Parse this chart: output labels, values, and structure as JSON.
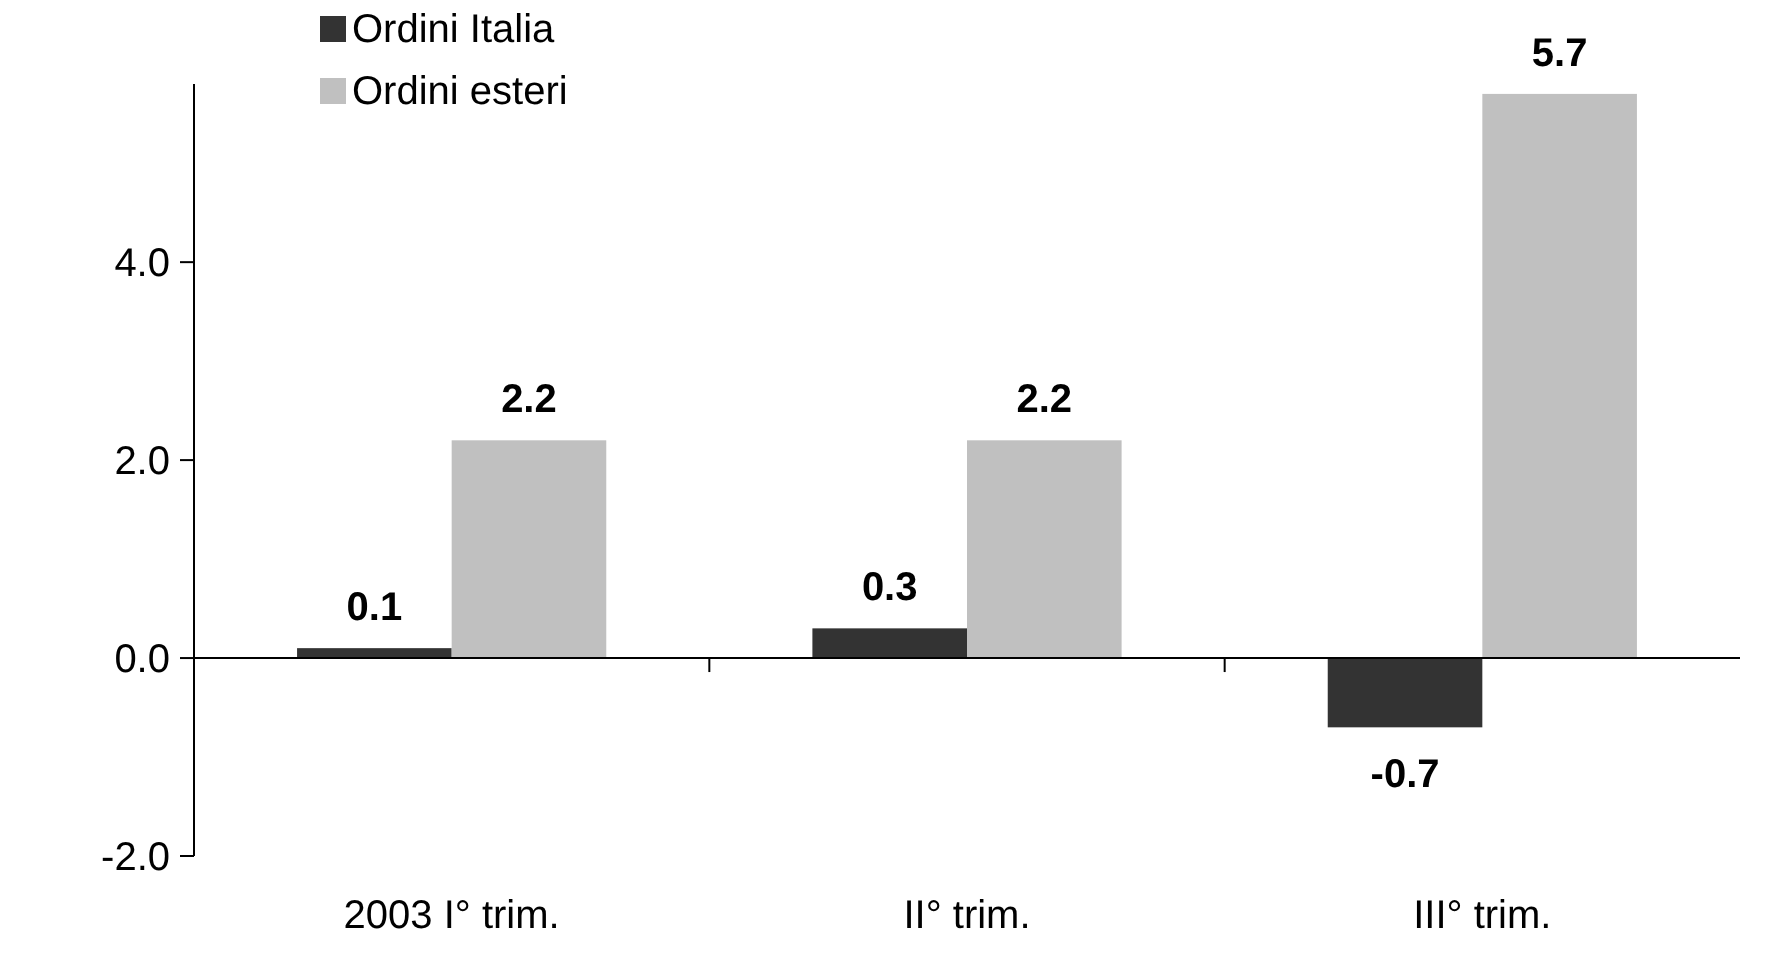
{
  "chart_data": {
    "type": "bar",
    "categories": [
      "2003 I° trim.",
      "II° trim.",
      "III° trim."
    ],
    "series": [
      {
        "name": "Ordini Italia",
        "color": "#333333",
        "values": [
          0.1,
          0.3,
          -0.7
        ]
      },
      {
        "name": "Ordini esteri",
        "color": "#c0c0c0",
        "values": [
          2.2,
          2.2,
          5.7
        ]
      }
    ],
    "ylim": [
      -2,
      5.8
    ],
    "yticks": [
      {
        "value": -2,
        "label": "-2.0"
      },
      {
        "value": 0,
        "label": "0.0"
      },
      {
        "value": 2,
        "label": "2.0"
      },
      {
        "value": 4,
        "label": "4.0"
      }
    ],
    "data_labels": true,
    "legend": "top left"
  }
}
